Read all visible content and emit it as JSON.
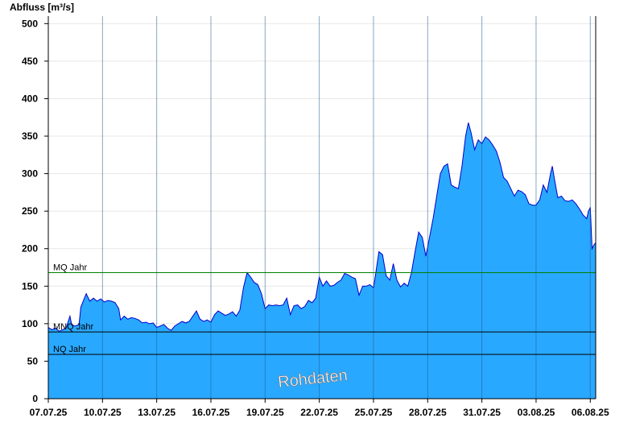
{
  "chart_data": {
    "type": "area",
    "ylabel": "Abfluss [m³/s]",
    "ylim": [
      0,
      510
    ],
    "yticks": [
      0,
      50,
      100,
      150,
      200,
      250,
      300,
      350,
      400,
      450,
      500
    ],
    "xlim": [
      0,
      30.3
    ],
    "xticks": [
      {
        "day": 0,
        "label": "07.07.25"
      },
      {
        "day": 3,
        "label": "10.07.25"
      },
      {
        "day": 6,
        "label": "13.07.25"
      },
      {
        "day": 9,
        "label": "16.07.25"
      },
      {
        "day": 12,
        "label": "19.07.25"
      },
      {
        "day": 15,
        "label": "22.07.25"
      },
      {
        "day": 18,
        "label": "25.07.25"
      },
      {
        "day": 21,
        "label": "28.07.25"
      },
      {
        "day": 24,
        "label": "31.07.25"
      },
      {
        "day": 27,
        "label": "03.08.25"
      },
      {
        "day": 30,
        "label": "06.08.25"
      }
    ],
    "reference_lines": [
      {
        "label": "MQ Jahr",
        "value": 168,
        "color": "#008000"
      },
      {
        "label": "MNQ Jahr",
        "value": 89,
        "color": "#000000"
      },
      {
        "label": "NQ Jahr",
        "value": 59,
        "color": "#000000"
      }
    ],
    "watermark": "Rohdaten",
    "grid": true,
    "colors": {
      "fill": "#29a8ff",
      "line": "#0000cc"
    },
    "series": [
      {
        "values": [
          [
            0.0,
            95
          ],
          [
            0.2,
            92
          ],
          [
            0.4,
            94
          ],
          [
            0.6,
            90
          ],
          [
            0.8,
            92
          ],
          [
            1.0,
            95
          ],
          [
            1.2,
            110
          ],
          [
            1.3,
            98
          ],
          [
            1.5,
            97
          ],
          [
            1.7,
            99
          ],
          [
            1.8,
            122
          ],
          [
            1.9,
            128
          ],
          [
            2.1,
            140
          ],
          [
            2.3,
            130
          ],
          [
            2.5,
            134
          ],
          [
            2.7,
            130
          ],
          [
            2.9,
            133
          ],
          [
            3.1,
            129
          ],
          [
            3.3,
            131
          ],
          [
            3.5,
            130
          ],
          [
            3.7,
            128
          ],
          [
            3.9,
            120
          ],
          [
            4.0,
            105
          ],
          [
            4.2,
            110
          ],
          [
            4.4,
            106
          ],
          [
            4.6,
            108
          ],
          [
            4.8,
            107
          ],
          [
            5.0,
            105
          ],
          [
            5.2,
            101
          ],
          [
            5.4,
            102
          ],
          [
            5.6,
            100
          ],
          [
            5.8,
            101
          ],
          [
            6.0,
            95
          ],
          [
            6.2,
            97
          ],
          [
            6.4,
            99
          ],
          [
            6.6,
            94
          ],
          [
            6.8,
            91
          ],
          [
            7.0,
            97
          ],
          [
            7.2,
            100
          ],
          [
            7.4,
            103
          ],
          [
            7.6,
            101
          ],
          [
            7.8,
            103
          ],
          [
            8.0,
            110
          ],
          [
            8.2,
            117
          ],
          [
            8.4,
            106
          ],
          [
            8.6,
            103
          ],
          [
            8.8,
            105
          ],
          [
            9.0,
            102
          ],
          [
            9.2,
            112
          ],
          [
            9.4,
            117
          ],
          [
            9.6,
            114
          ],
          [
            9.8,
            111
          ],
          [
            10.0,
            113
          ],
          [
            10.2,
            116
          ],
          [
            10.4,
            110
          ],
          [
            10.6,
            118
          ],
          [
            10.8,
            148
          ],
          [
            11.0,
            168
          ],
          [
            11.2,
            162
          ],
          [
            11.4,
            155
          ],
          [
            11.6,
            152
          ],
          [
            11.8,
            140
          ],
          [
            12.0,
            120
          ],
          [
            12.2,
            125
          ],
          [
            12.4,
            124
          ],
          [
            12.6,
            125
          ],
          [
            12.8,
            124
          ],
          [
            13.0,
            125
          ],
          [
            13.2,
            134
          ],
          [
            13.4,
            112
          ],
          [
            13.6,
            124
          ],
          [
            13.8,
            125
          ],
          [
            14.0,
            120
          ],
          [
            14.2,
            123
          ],
          [
            14.4,
            131
          ],
          [
            14.6,
            128
          ],
          [
            14.8,
            134
          ],
          [
            15.0,
            162
          ],
          [
            15.2,
            150
          ],
          [
            15.4,
            157
          ],
          [
            15.6,
            150
          ],
          [
            15.8,
            151
          ],
          [
            16.0,
            155
          ],
          [
            16.2,
            158
          ],
          [
            16.4,
            167
          ],
          [
            16.6,
            165
          ],
          [
            16.8,
            162
          ],
          [
            17.0,
            160
          ],
          [
            17.2,
            138
          ],
          [
            17.4,
            150
          ],
          [
            17.6,
            150
          ],
          [
            17.8,
            152
          ],
          [
            18.0,
            148
          ],
          [
            18.1,
            163
          ],
          [
            18.3,
            196
          ],
          [
            18.5,
            192
          ],
          [
            18.7,
            164
          ],
          [
            18.9,
            158
          ],
          [
            19.1,
            180
          ],
          [
            19.3,
            158
          ],
          [
            19.5,
            149
          ],
          [
            19.7,
            154
          ],
          [
            19.9,
            150
          ],
          [
            20.1,
            168
          ],
          [
            20.3,
            196
          ],
          [
            20.5,
            222
          ],
          [
            20.7,
            215
          ],
          [
            20.9,
            190
          ],
          [
            21.1,
            215
          ],
          [
            21.3,
            240
          ],
          [
            21.5,
            270
          ],
          [
            21.7,
            300
          ],
          [
            21.9,
            310
          ],
          [
            22.1,
            313
          ],
          [
            22.3,
            285
          ],
          [
            22.5,
            282
          ],
          [
            22.7,
            280
          ],
          [
            22.9,
            310
          ],
          [
            23.1,
            350
          ],
          [
            23.25,
            368
          ],
          [
            23.4,
            355
          ],
          [
            23.6,
            332
          ],
          [
            23.8,
            345
          ],
          [
            24.0,
            340
          ],
          [
            24.2,
            349
          ],
          [
            24.4,
            345
          ],
          [
            24.6,
            338
          ],
          [
            24.8,
            330
          ],
          [
            25.0,
            315
          ],
          [
            25.2,
            295
          ],
          [
            25.4,
            290
          ],
          [
            25.6,
            280
          ],
          [
            25.8,
            270
          ],
          [
            26.0,
            278
          ],
          [
            26.2,
            276
          ],
          [
            26.4,
            272
          ],
          [
            26.6,
            260
          ],
          [
            26.8,
            258
          ],
          [
            27.0,
            258
          ],
          [
            27.2,
            265
          ],
          [
            27.4,
            285
          ],
          [
            27.6,
            275
          ],
          [
            27.8,
            300
          ],
          [
            27.9,
            310
          ],
          [
            28.0,
            295
          ],
          [
            28.2,
            268
          ],
          [
            28.4,
            270
          ],
          [
            28.6,
            264
          ],
          [
            28.8,
            263
          ],
          [
            29.0,
            265
          ],
          [
            29.2,
            260
          ],
          [
            29.4,
            253
          ],
          [
            29.6,
            245
          ],
          [
            29.8,
            240
          ],
          [
            29.9,
            250
          ],
          [
            30.0,
            255
          ],
          [
            30.1,
            200
          ],
          [
            30.2,
            205
          ],
          [
            30.3,
            208
          ]
        ]
      }
    ]
  }
}
